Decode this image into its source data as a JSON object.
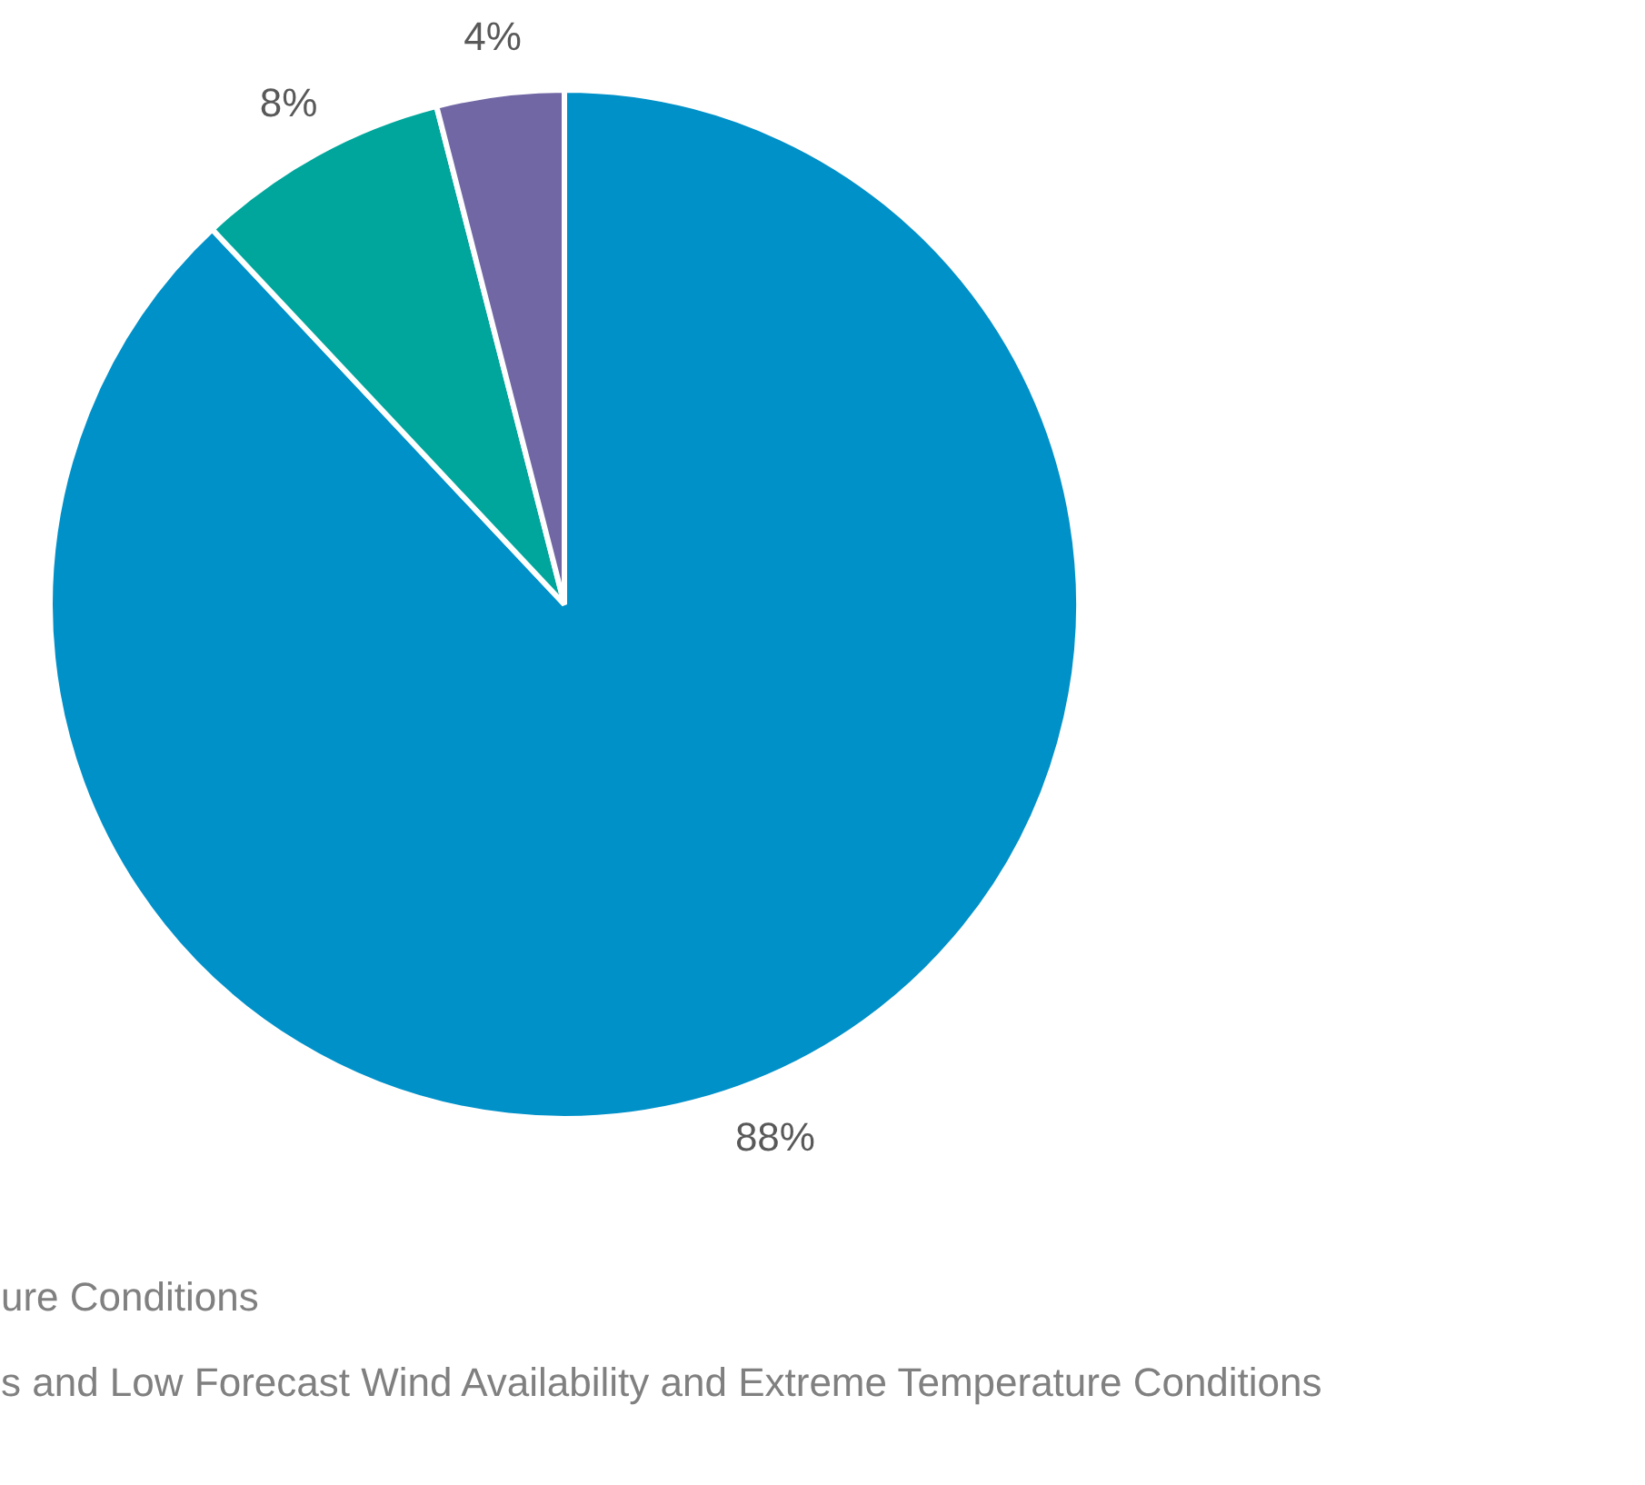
{
  "chart_data": {
    "type": "pie",
    "categories": [
      null,
      null,
      null
    ],
    "values": [
      88,
      8,
      4
    ],
    "colors": [
      "#0091c9",
      "#00a69c",
      "#7067a4"
    ],
    "value_labels": [
      "88%",
      "8%",
      "4%"
    ],
    "annotations": [
      "ure Conditions",
      "s and Low Forecast Wind Availability and Extreme Temperature Conditions"
    ]
  }
}
